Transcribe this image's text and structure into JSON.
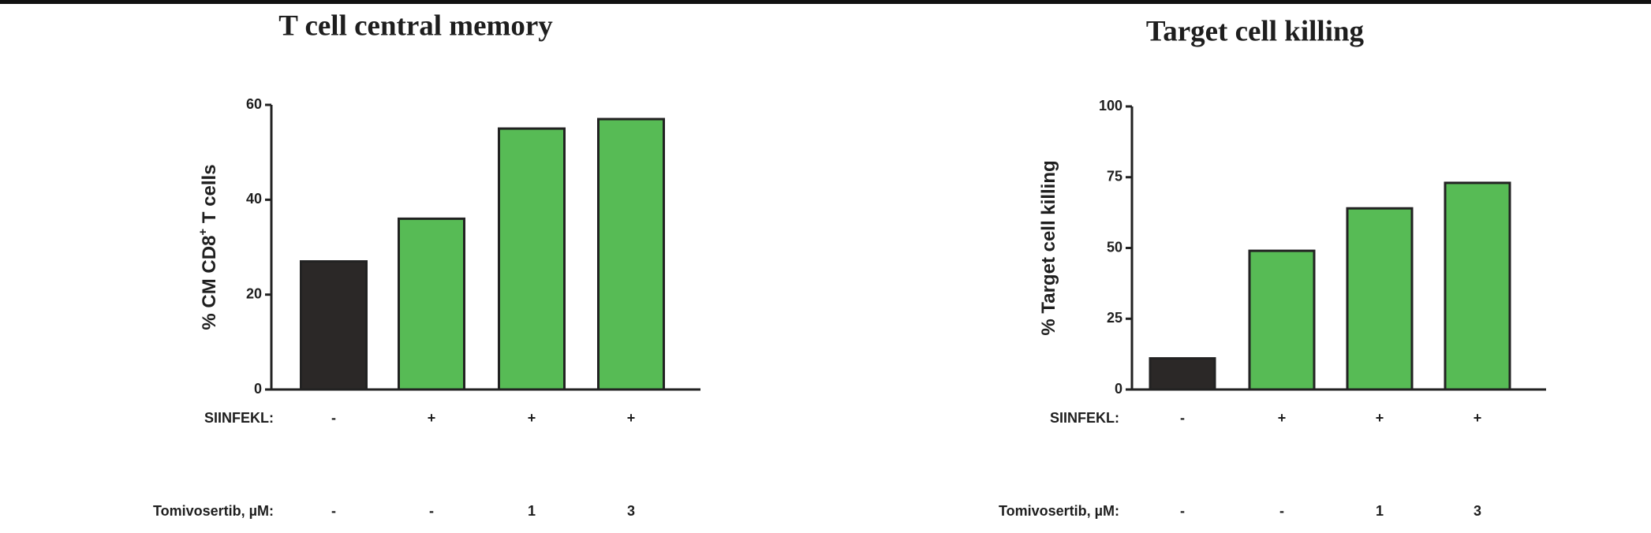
{
  "chart_data": [
    {
      "type": "bar",
      "title": "T cell central memory",
      "y_label_parts": [
        "% CM CD8",
        "+",
        " T cells"
      ],
      "values": [
        27,
        36,
        55,
        57
      ],
      "colors": [
        "#2b2827",
        "#57bb55",
        "#57bb55",
        "#57bb55"
      ],
      "category_rows": [
        {
          "label": "SIINFEKL:",
          "values": [
            "-",
            "+",
            "+",
            "+"
          ]
        },
        {
          "label": "Tomivosertib, µM:",
          "values": [
            "-",
            "-",
            "1",
            "3"
          ]
        }
      ],
      "ylim": [
        0,
        60
      ],
      "yticks": [
        0,
        20,
        40,
        60
      ]
    },
    {
      "type": "bar",
      "title": "Target cell killing",
      "y_label_parts": [
        "% Target cell killing"
      ],
      "values": [
        11,
        49,
        64,
        73
      ],
      "colors": [
        "#2b2827",
        "#57bb55",
        "#57bb55",
        "#57bb55"
      ],
      "category_rows": [
        {
          "label": "SIINFEKL:",
          "values": [
            "-",
            "+",
            "+",
            "+"
          ]
        },
        {
          "label": "Tomivosertib, µM:",
          "values": [
            "-",
            "-",
            "1",
            "3"
          ]
        }
      ],
      "ylim": [
        0,
        100
      ],
      "yticks": [
        0,
        25,
        50,
        75,
        100
      ]
    }
  ]
}
